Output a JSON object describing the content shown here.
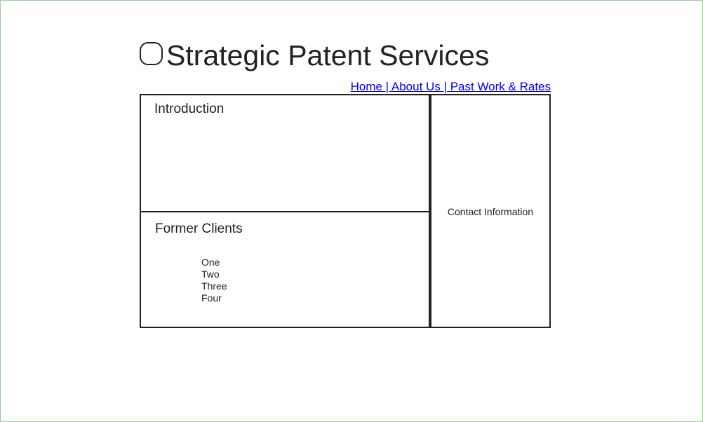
{
  "header": {
    "title": "Strategic Patent Services"
  },
  "nav": {
    "home": "Home",
    "about": "About Us",
    "past_work": "Past Work & Rates",
    "separator": " | "
  },
  "intro": {
    "heading": "Introduction"
  },
  "clients": {
    "heading": "Former Clients",
    "items": [
      "One",
      "Two",
      "Three",
      "Four"
    ]
  },
  "contact": {
    "label": "Contact Information"
  },
  "colors": {
    "link": "#0000ee",
    "border": "#222222",
    "frame": "#9ccc9c"
  }
}
